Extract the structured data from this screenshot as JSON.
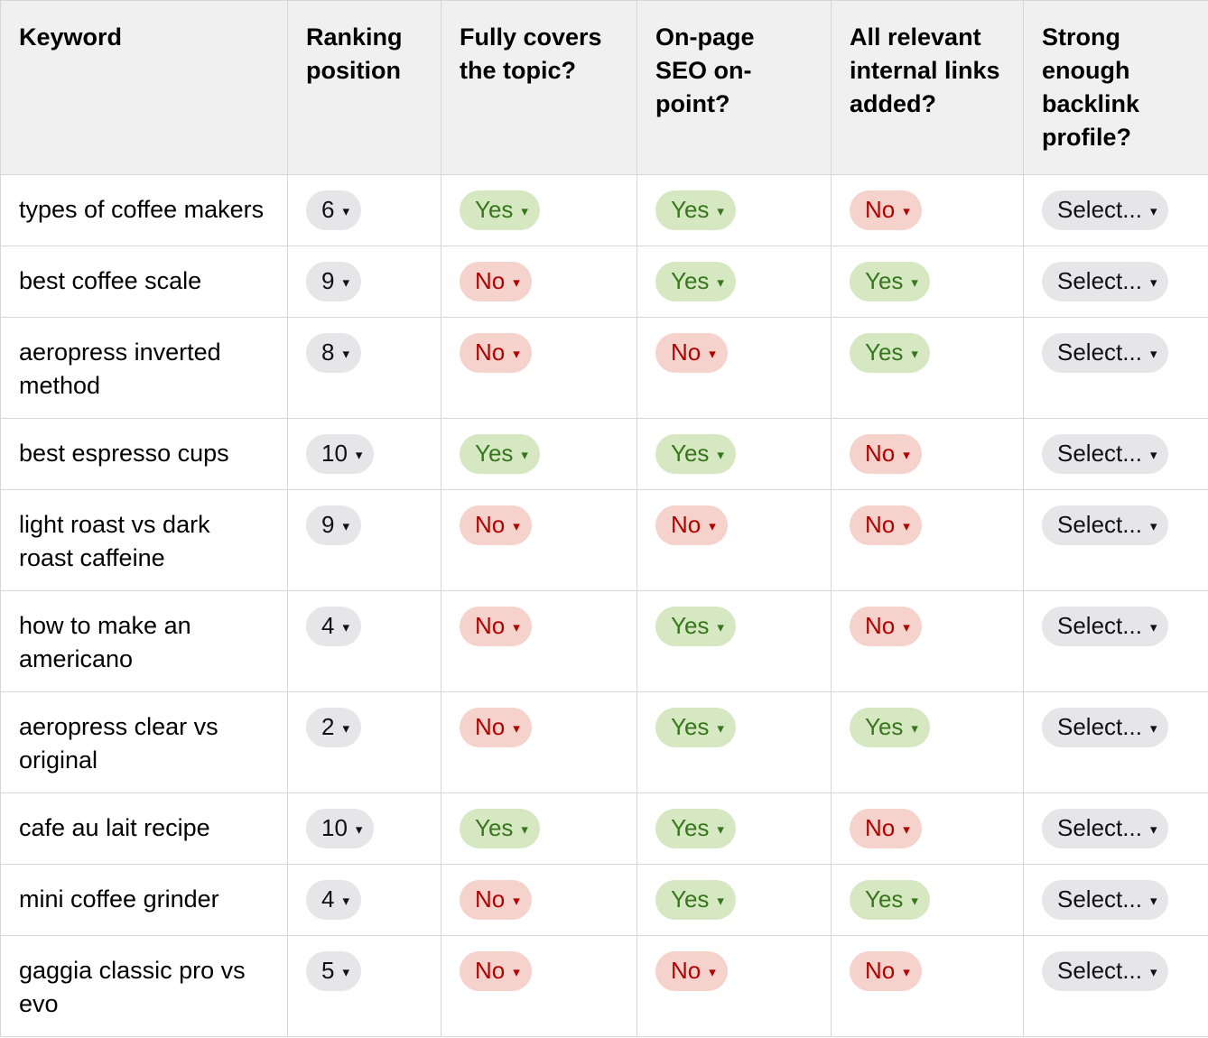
{
  "icons": {
    "dropdown_caret": "▾"
  },
  "colors": {
    "header_bg": "#f0f0f1",
    "border": "#d6d6d6",
    "text": "#000000",
    "chip_neutral_bg": "#e6e6e9",
    "chip_neutral_text": "#111111",
    "chip_yes_bg": "#d5e8c2",
    "chip_yes_text": "#38761d",
    "chip_no_bg": "#f5d2cb",
    "chip_no_text": "#b10202"
  },
  "table": {
    "columns": [
      "Keyword",
      "Ranking position",
      "Fully covers the topic?",
      "On-page SEO on-point?",
      "All relevant internal links added?",
      "Strong enough backlink profile?"
    ],
    "rows": [
      {
        "keyword": "types of coffee makers",
        "cells": [
          {
            "value": "6",
            "type": "neutral"
          },
          {
            "value": "Yes",
            "type": "yes"
          },
          {
            "value": "Yes",
            "type": "yes"
          },
          {
            "value": "No",
            "type": "no"
          },
          {
            "value": "Select...",
            "type": "select"
          }
        ]
      },
      {
        "keyword": "best coffee scale",
        "cells": [
          {
            "value": "9",
            "type": "neutral"
          },
          {
            "value": "No",
            "type": "no"
          },
          {
            "value": "Yes",
            "type": "yes"
          },
          {
            "value": "Yes",
            "type": "yes"
          },
          {
            "value": "Select...",
            "type": "select"
          }
        ]
      },
      {
        "keyword": "aeropress inverted method",
        "cells": [
          {
            "value": "8",
            "type": "neutral"
          },
          {
            "value": "No",
            "type": "no"
          },
          {
            "value": "No",
            "type": "no"
          },
          {
            "value": "Yes",
            "type": "yes"
          },
          {
            "value": "Select...",
            "type": "select"
          }
        ]
      },
      {
        "keyword": "best espresso cups",
        "cells": [
          {
            "value": "10",
            "type": "neutral"
          },
          {
            "value": "Yes",
            "type": "yes"
          },
          {
            "value": "Yes",
            "type": "yes"
          },
          {
            "value": "No",
            "type": "no"
          },
          {
            "value": "Select...",
            "type": "select"
          }
        ]
      },
      {
        "keyword": "light roast vs dark roast caffeine",
        "cells": [
          {
            "value": "9",
            "type": "neutral"
          },
          {
            "value": "No",
            "type": "no"
          },
          {
            "value": "No",
            "type": "no"
          },
          {
            "value": "No",
            "type": "no"
          },
          {
            "value": "Select...",
            "type": "select"
          }
        ]
      },
      {
        "keyword": "how to make an americano",
        "cells": [
          {
            "value": "4",
            "type": "neutral"
          },
          {
            "value": "No",
            "type": "no"
          },
          {
            "value": "Yes",
            "type": "yes"
          },
          {
            "value": "No",
            "type": "no"
          },
          {
            "value": "Select...",
            "type": "select"
          }
        ]
      },
      {
        "keyword": "aeropress clear vs original",
        "cells": [
          {
            "value": "2",
            "type": "neutral"
          },
          {
            "value": "No",
            "type": "no"
          },
          {
            "value": "Yes",
            "type": "yes"
          },
          {
            "value": "Yes",
            "type": "yes"
          },
          {
            "value": "Select...",
            "type": "select"
          }
        ]
      },
      {
        "keyword": "cafe au lait recipe",
        "cells": [
          {
            "value": "10",
            "type": "neutral"
          },
          {
            "value": "Yes",
            "type": "yes"
          },
          {
            "value": "Yes",
            "type": "yes"
          },
          {
            "value": "No",
            "type": "no"
          },
          {
            "value": "Select...",
            "type": "select"
          }
        ]
      },
      {
        "keyword": "mini coffee grinder",
        "cells": [
          {
            "value": "4",
            "type": "neutral"
          },
          {
            "value": "No",
            "type": "no"
          },
          {
            "value": "Yes",
            "type": "yes"
          },
          {
            "value": "Yes",
            "type": "yes"
          },
          {
            "value": "Select...",
            "type": "select"
          }
        ]
      },
      {
        "keyword": "gaggia classic pro vs evo",
        "cells": [
          {
            "value": "5",
            "type": "neutral"
          },
          {
            "value": "No",
            "type": "no"
          },
          {
            "value": "No",
            "type": "no"
          },
          {
            "value": "No",
            "type": "no"
          },
          {
            "value": "Select...",
            "type": "select"
          }
        ]
      }
    ]
  }
}
